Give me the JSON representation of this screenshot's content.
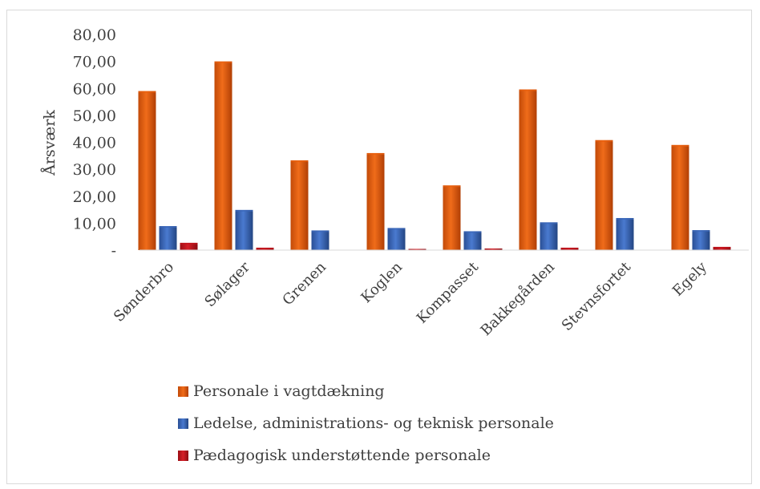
{
  "chart_data": {
    "type": "bar",
    "ylabel": "Årsværk",
    "xlabel": "",
    "ylim": [
      0,
      80
    ],
    "yticks": [
      0,
      10,
      20,
      30,
      40,
      50,
      60,
      70,
      80
    ],
    "ytick_labels": [
      "-",
      "10,00",
      "20,00",
      "30,00",
      "40,00",
      "50,00",
      "60,00",
      "70,00",
      "80,00"
    ],
    "categories": [
      "Sønderbro",
      "Sølager",
      "Grenen",
      "Koglen",
      "Kompasset",
      "Bakkegården",
      "Stevnsfortet",
      "Egely"
    ],
    "series": [
      {
        "name": "Personale i vagtdækning",
        "color": "#e8600e",
        "values": [
          59.0,
          70.0,
          33.3,
          36.0,
          24.0,
          59.6,
          40.8,
          39.0
        ]
      },
      {
        "name": "Ledelse, administrations- og teknisk personale",
        "color": "#3a67b8",
        "values": [
          8.9,
          14.9,
          7.3,
          8.2,
          7.0,
          10.3,
          11.9,
          7.4
        ]
      },
      {
        "name": "Pædagogisk understøttende personale",
        "color": "#c0141c",
        "values": [
          2.7,
          0.9,
          0.0,
          0.2,
          0.6,
          0.9,
          0.0,
          1.2
        ]
      }
    ],
    "legend_position": "bottom",
    "grid": false
  }
}
